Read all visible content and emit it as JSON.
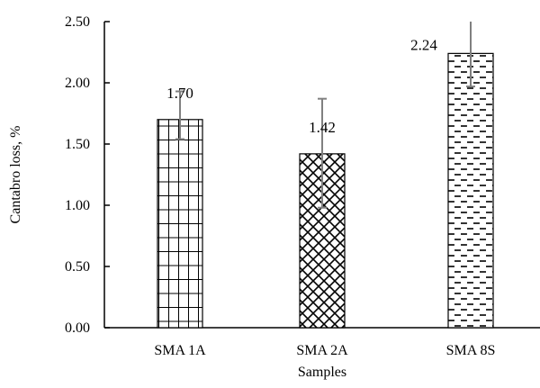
{
  "chart_data": {
    "type": "bar",
    "title": "",
    "xlabel": "Samples",
    "ylabel": "Cantabro loss, %",
    "ylim": [
      0,
      2.5
    ],
    "yticks": [
      "0.00",
      "0.50",
      "1.00",
      "1.50",
      "2.00",
      "2.50"
    ],
    "categories": [
      "SMA 1A",
      "SMA 2A",
      "SMA 8S"
    ],
    "values": [
      1.7,
      1.42,
      2.24
    ],
    "data_labels": [
      "1.70",
      "1.42",
      "2.24"
    ],
    "error_bars": [
      {
        "low": 1.54,
        "high": 1.93
      },
      {
        "low": 0.98,
        "high": 1.87
      },
      {
        "low": 1.97,
        "high": 2.5
      }
    ],
    "patterns": [
      "grid",
      "crosshatch",
      "dashes"
    ],
    "colors": {
      "bar_stroke": "#000000",
      "bar_fill": "#ffffff",
      "error_bar": "#808080",
      "axis": "#000000"
    },
    "grid": false,
    "legend": "none"
  }
}
